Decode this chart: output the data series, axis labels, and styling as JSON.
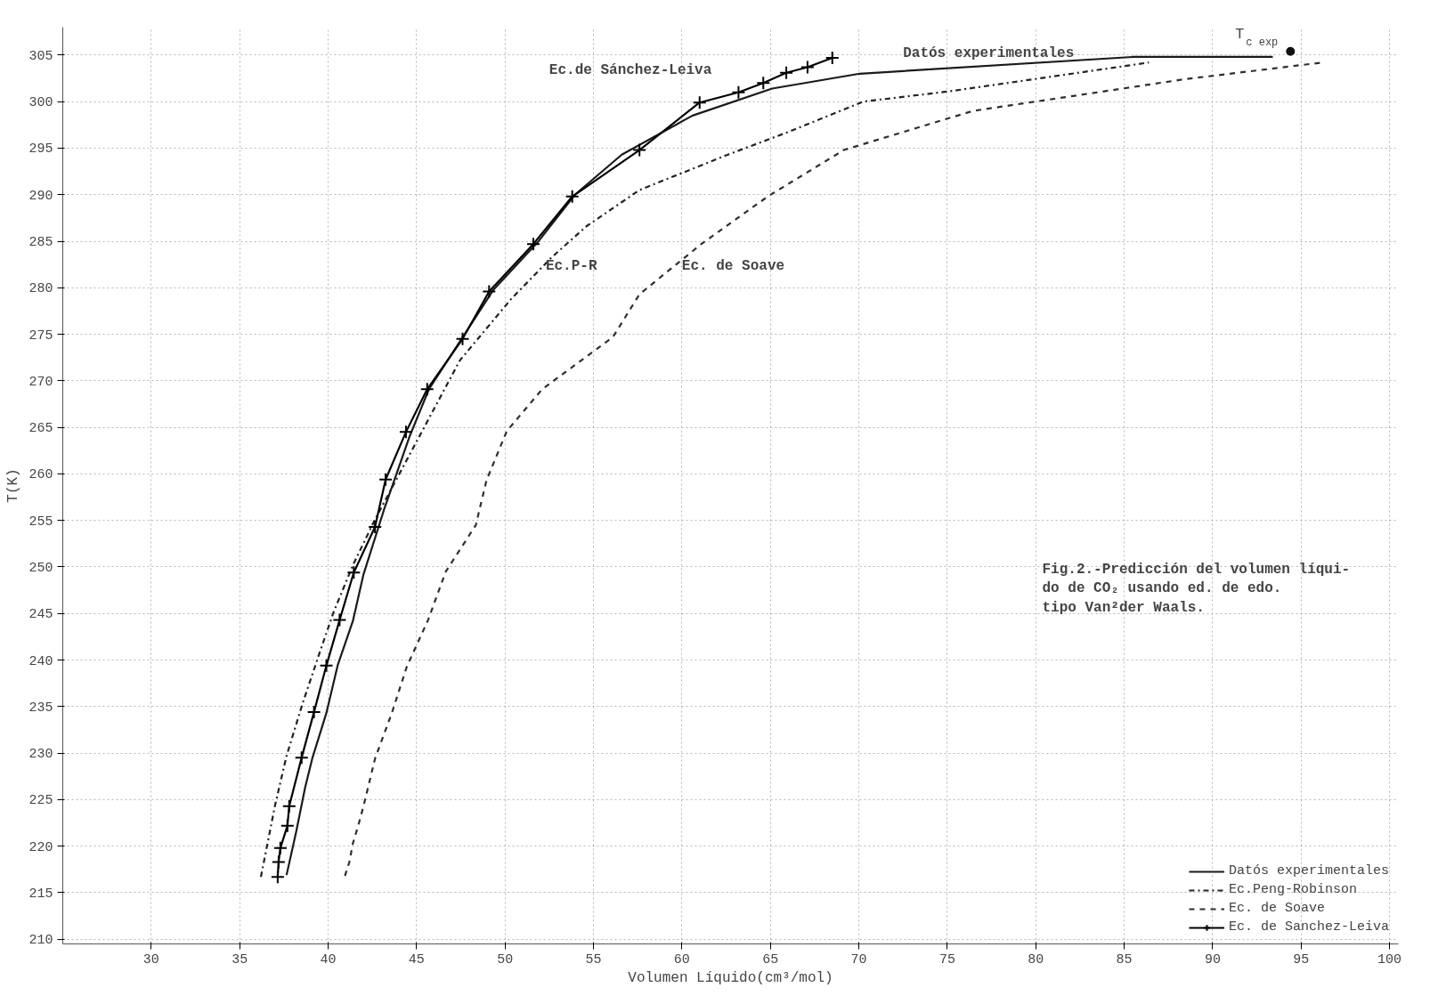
{
  "chart_data": {
    "type": "line",
    "xlabel": "Volumen Líquido(cm³/mol)",
    "ylabel": "T(K)",
    "xlim": [
      25,
      100.5
    ],
    "ylim": [
      209.5,
      308
    ],
    "xticks": [
      30,
      35,
      40,
      45,
      50,
      55,
      60,
      65,
      70,
      75,
      80,
      85,
      90,
      95,
      100
    ],
    "yticks": [
      210,
      215,
      220,
      225,
      230,
      235,
      240,
      245,
      250,
      255,
      260,
      265,
      270,
      275,
      280,
      285,
      290,
      295,
      300,
      305
    ],
    "grid": true,
    "legend": "bottom right",
    "series": [
      {
        "name": "Datós experimentales",
        "color": "#1a1a1a",
        "line_style": "solid",
        "marker": "none",
        "x": [
          37.65,
          38.2,
          38.7,
          39.1,
          39.9,
          40.55,
          41.4,
          42.0,
          43.15,
          44.6,
          45.7,
          49.35,
          51.85,
          53.95,
          56.6,
          60.6,
          65.1,
          70.05,
          85.5,
          93.4
        ],
        "values": [
          216.9,
          221.6,
          226.3,
          229.4,
          234.3,
          239.5,
          244.2,
          249.2,
          256.1,
          264.0,
          269.1,
          279.8,
          284.9,
          290.0,
          294.3,
          298.5,
          301.4,
          303.0,
          304.8,
          304.8
        ]
      },
      {
        "name": "Ec.Peng-Robinson",
        "color": "#222222",
        "line_style": "dashdot",
        "marker": "none",
        "x": [
          36.2,
          37.0,
          37.65,
          38.55,
          39.45,
          40.3,
          41.4,
          42.65,
          47.45,
          50.35,
          52.6,
          54.6,
          57.6,
          62.6,
          66.1,
          70.25,
          75.1,
          82.05,
          86.4
        ],
        "values": [
          216.7,
          224.4,
          229.7,
          235.3,
          240.4,
          245.1,
          250.2,
          255.1,
          272.2,
          278.8,
          283.2,
          286.6,
          290.5,
          294.3,
          296.8,
          300.0,
          301.1,
          303.0,
          304.2
        ]
      },
      {
        "name": "Ec. de Soave",
        "color": "#2e2e2e",
        "line_style": "dashed",
        "marker": "none",
        "x": [
          40.95,
          41.2,
          41.4,
          41.7,
          42.0,
          42.65,
          43.6,
          44.45,
          45.65,
          46.65,
          48.35,
          48.95,
          50.1,
          52.1,
          56.1,
          57.6,
          61.1,
          64.85,
          69.15,
          76.45,
          81.75,
          88.4,
          96.2
        ],
        "values": [
          216.8,
          218.3,
          220.3,
          222.2,
          224.3,
          229.4,
          234.3,
          239.3,
          244.3,
          249.5,
          254.5,
          259.3,
          264.6,
          269.1,
          274.7,
          279.3,
          284.7,
          289.8,
          294.8,
          299.0,
          300.5,
          302.4,
          304.2
        ]
      },
      {
        "name": "Ec. de Sanchez-Leiva",
        "color": "#000000",
        "line_style": "solid",
        "marker": "cross",
        "x": [
          37.15,
          37.2,
          37.3,
          37.7,
          37.8,
          38.5,
          39.2,
          39.9,
          40.65,
          41.45,
          42.65,
          43.25,
          44.4,
          45.6,
          47.6,
          49.1,
          51.6,
          53.8,
          57.6,
          61.0,
          63.2,
          64.6,
          65.9,
          67.1,
          68.5
        ],
        "values": [
          216.7,
          218.3,
          219.8,
          222.2,
          224.3,
          229.5,
          234.4,
          239.4,
          244.3,
          249.4,
          254.3,
          259.4,
          264.5,
          269.1,
          274.5,
          279.6,
          284.7,
          289.8,
          294.8,
          299.9,
          301.0,
          302.0,
          303.1,
          303.7,
          304.7
        ]
      },
      {
        "type": "scatter",
        "color": "#111111",
        "x": [
          94.4
        ],
        "values": [
          305.4
        ]
      }
    ],
    "annotations": [
      "Ec.de Sánchez-Leiva",
      "Datós experimentales",
      "Ec.P-R",
      "Ec. de Soave",
      {
        "text": "T$_{c exp}$",
        "x": 94.4,
        "y": 305.4
      },
      "Fig.2.-Predicción del volumen líqui-\n       do de CO₂ usando ed. de edo.\n       tipo Van²der Waals."
    ]
  }
}
